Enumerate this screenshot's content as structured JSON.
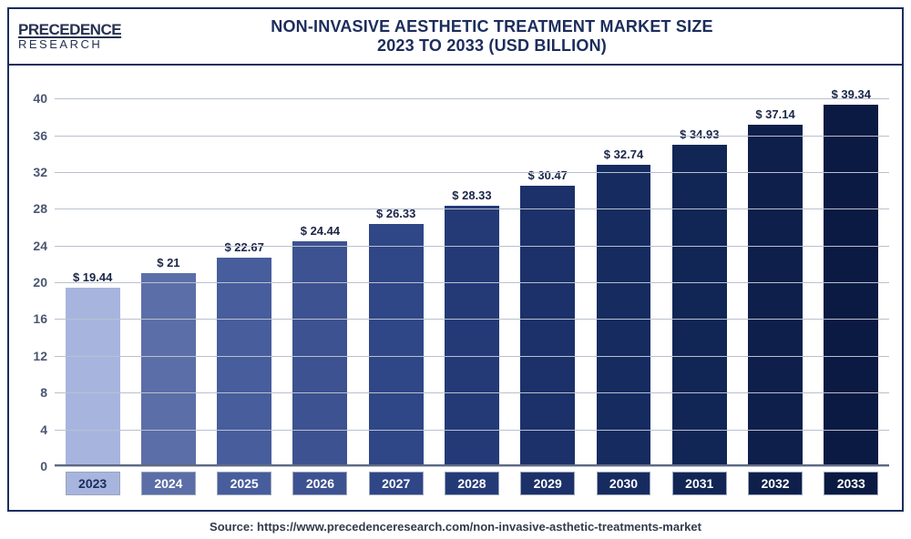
{
  "logo": {
    "top": "PRECEDENCE",
    "bottom": "RESEARCH"
  },
  "title": {
    "line1": "NON-INVASIVE AESTHETIC TREATMENT MARKET SIZE",
    "line2": "2023 TO 2033 (USD BILLION)"
  },
  "source": "Source: https://www.precedenceresearch.com/non-invasive-asthetic-treatments-market",
  "chart": {
    "type": "bar",
    "ylim_min": 0,
    "ylim_max": 42,
    "ytick_step": 4,
    "grid_color": "#b9c0cf",
    "background_color": "#ffffff",
    "tick_font_color": "#4a5672",
    "years": [
      "2023",
      "2024",
      "2025",
      "2026",
      "2027",
      "2028",
      "2029",
      "2030",
      "2031",
      "2032",
      "2033"
    ],
    "values": [
      19.44,
      21,
      22.67,
      24.44,
      26.33,
      28.33,
      30.47,
      32.74,
      34.93,
      37.14,
      39.34
    ],
    "value_labels": [
      "$ 19.44",
      "$ 21",
      "$ 22.67",
      "$ 24.44",
      "$ 26.33",
      "$ 28.33",
      "$ 30.47",
      "$ 32.74",
      "$ 34.93",
      "$ 37.14",
      "$ 39.34"
    ],
    "bar_colors": [
      "#a7b5de",
      "#5b6ea7",
      "#475d9c",
      "#3d5291",
      "#2f4687",
      "#243a77",
      "#1c3169",
      "#162b60",
      "#122656",
      "#0e1f4b",
      "#0a1a42"
    ],
    "x_tick_bg_colors": [
      "#a7b5de",
      "#5b6ea7",
      "#475d9c",
      "#3d5291",
      "#2f4687",
      "#243a77",
      "#1c3169",
      "#162b60",
      "#122656",
      "#0e1f4b",
      "#0a1a42"
    ],
    "x_tick_text_colors": [
      "#1c2d5c",
      "#ffffff",
      "#ffffff",
      "#ffffff",
      "#ffffff",
      "#ffffff",
      "#ffffff",
      "#ffffff",
      "#ffffff",
      "#ffffff",
      "#ffffff"
    ],
    "bar_width_pct": 72,
    "value_label_fontsize": 13,
    "tick_fontsize": 14
  }
}
